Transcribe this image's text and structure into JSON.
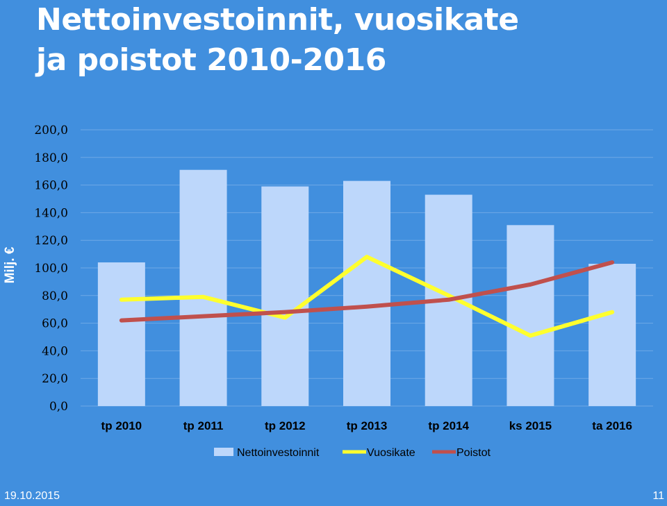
{
  "slide": {
    "title_line1": "Nettoinvestoinnit, vuosikate",
    "title_line2": "ja poistot 2010-2016",
    "date": "19.10.2015",
    "page_number": "11"
  },
  "colors": {
    "background": "#418fde",
    "bars": "#bdd7fb",
    "vuosikate": "#ffff2e",
    "poistot": "#c0504d",
    "gridline": "#6fa9e6",
    "text": "#000000"
  },
  "chart_data": {
    "type": "bar",
    "title": "",
    "xlabel": "",
    "ylabel": "Milj. €",
    "ylim": [
      0,
      200
    ],
    "y_ticks": [
      "0,0",
      "20,0",
      "40,0",
      "60,0",
      "80,0",
      "100,0",
      "120,0",
      "140,0",
      "160,0",
      "180,0",
      "200,0"
    ],
    "categories": [
      "tp 2010",
      "tp 2011",
      "tp 2012",
      "tp 2013",
      "tp 2014",
      "ks 2015",
      "ta 2016"
    ],
    "grid": true,
    "legend_position": "bottom",
    "series": [
      {
        "name": "Nettoinvestoinnit",
        "kind": "bar",
        "values": [
          104,
          171,
          159,
          163,
          153,
          131,
          103
        ]
      },
      {
        "name": "Vuosikate",
        "kind": "line",
        "values": [
          77,
          79,
          64,
          108,
          80,
          51,
          68
        ]
      },
      {
        "name": "Poistot",
        "kind": "line",
        "values": [
          62,
          65,
          68,
          72,
          77,
          88,
          104
        ]
      }
    ]
  }
}
